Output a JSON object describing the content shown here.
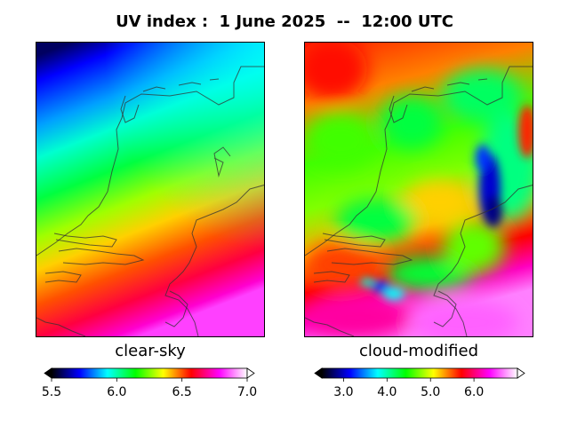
{
  "title": "UV index :  1 June 2025  --  12:00 UTC",
  "panels": [
    {
      "id": "left",
      "label": "clear-sky",
      "colorbar": {
        "min": 5.5,
        "max": 7.0,
        "ticks": [
          "5.5",
          "6.0",
          "6.5",
          "7.0"
        ],
        "tick_values": [
          5.5,
          6.0,
          6.5,
          7.0
        ],
        "extend": "both"
      }
    },
    {
      "id": "right",
      "label": "cloud-modified",
      "colorbar": {
        "min": 2.5,
        "max": 7.0,
        "ticks": [
          "3.0",
          "4.0",
          "5.0",
          "6.0"
        ],
        "tick_values": [
          3.0,
          4.0,
          5.0,
          6.0
        ],
        "extend": "both"
      }
    }
  ],
  "colormap": [
    "#000000",
    "#0000ff",
    "#00ffff",
    "#00ff00",
    "#ffff00",
    "#ff0000",
    "#ff00ff",
    "#ffffff"
  ]
}
